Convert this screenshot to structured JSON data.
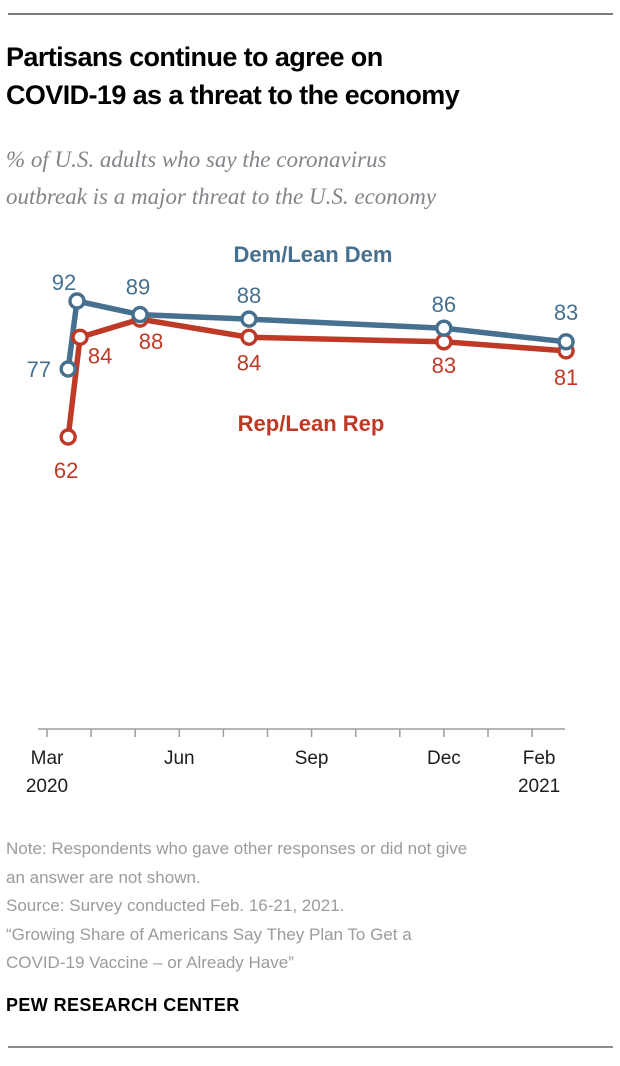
{
  "header": {
    "title_lines": [
      "Partisans continue to agree on",
      "COVID-19 as a threat to the economy"
    ],
    "subtitle_lines": [
      "% of U.S. adults who say the coronavirus",
      "outbreak is a major threat to the U.S. economy"
    ]
  },
  "chart_data": {
    "type": "line",
    "title": "Partisans continue to agree on COVID-19 as a threat to the economy",
    "subtitle": "% of U.S. adults who say the coronavirus outbreak is a major threat to the U.S. economy",
    "unit": "percent",
    "ylim": [
      55,
      100
    ],
    "grid": false,
    "legend_position": "inline-labels",
    "x_axis": {
      "range_months": [
        0,
        12
      ],
      "ticks": [
        {
          "m": 0,
          "label": "Mar",
          "year": "2020"
        },
        {
          "m": 1
        },
        {
          "m": 2
        },
        {
          "m": 3,
          "label": "Jun"
        },
        {
          "m": 4
        },
        {
          "m": 5
        },
        {
          "m": 6,
          "label": "Sep"
        },
        {
          "m": 7
        },
        {
          "m": 8
        },
        {
          "m": 9,
          "label": "Dec"
        },
        {
          "m": 10
        },
        {
          "m": 11,
          "label": "Feb",
          "year": "2021"
        }
      ]
    },
    "series": [
      {
        "name": "Dem/Lean Dem",
        "color": "#46708F",
        "x_months": [
          0.48,
          0.68,
          2.11,
          4.58,
          9.0,
          11.77
        ],
        "values": [
          77,
          92,
          89,
          88,
          86,
          83
        ]
      },
      {
        "name": "Rep/Lean Rep",
        "color": "#BF3927",
        "x_months": [
          0.48,
          0.75,
          2.11,
          4.58,
          9.0,
          11.77
        ],
        "values": [
          62,
          84,
          88,
          84,
          83,
          81
        ]
      }
    ]
  },
  "footer": {
    "note_lines": [
      "Note: Respondents who gave other responses or did not give",
      "an answer are not shown."
    ],
    "source": "Source: Survey conducted Feb. 16-21, 2021.",
    "report_lines": [
      "“Growing Share of Americans Say They Plan To Get a",
      "COVID-19 Vaccine – or Already Have”"
    ],
    "brand": "PEW RESEARCH CENTER"
  }
}
